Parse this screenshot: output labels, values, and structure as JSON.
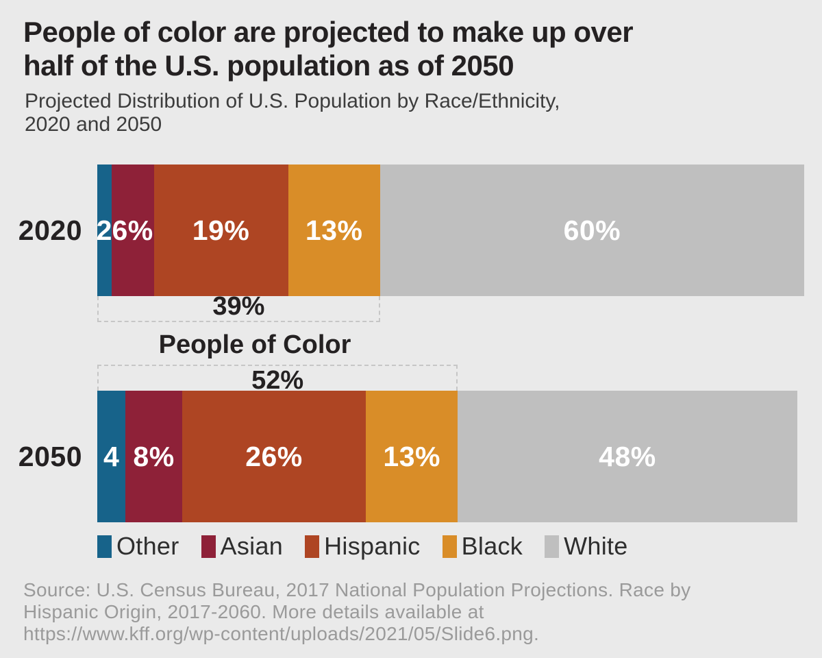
{
  "title": {
    "lines": [
      "People of color are projected to make up over",
      "half of the U.S. population as of 2050"
    ]
  },
  "subtitle": {
    "lines": [
      "Projected Distribution of U.S. Population by Race/Ethnicity,",
      "2020 and 2050"
    ]
  },
  "chart_data": {
    "type": "bar",
    "stacked": true,
    "orientation": "horizontal",
    "title": "People of color are projected to make up over half of the U.S. population as of 2050",
    "subtitle": "Projected Distribution of U.S. Population by Race/Ethnicity, 2020 and 2050",
    "categories": [
      "2020",
      "2050"
    ],
    "series": [
      {
        "name": "Other",
        "color": "#17638a",
        "values": [
          2,
          4
        ]
      },
      {
        "name": "Asian",
        "color": "#8e2138",
        "values": [
          6,
          8
        ]
      },
      {
        "name": "Hispanic",
        "color": "#ae4523",
        "values": [
          19,
          26
        ]
      },
      {
        "name": "Black",
        "color": "#d98d28",
        "values": [
          13,
          13
        ]
      },
      {
        "name": "White",
        "color": "#bfbfbf",
        "values": [
          60,
          48
        ]
      }
    ],
    "rows": [
      {
        "year": "2020",
        "labels": [
          "2",
          "6%",
          "19%",
          "13%",
          "60%"
        ],
        "poc_label": "39%",
        "poc_span_pct": 40
      },
      {
        "year": "2050",
        "labels": [
          "4",
          "8%",
          "26%",
          "13%",
          "48%"
        ],
        "poc_label": "52%",
        "poc_span_pct": 51
      }
    ],
    "annotation": "People of Color",
    "legend_position": "bottom",
    "xlim": [
      0,
      100
    ],
    "grid": false
  },
  "source": {
    "lines": [
      "Source: U.S. Census Bureau, 2017 National Population Projections. Race by",
      "Hispanic Origin, 2017-2060. More details available  at",
      "https://www.kff.org/wp-content/uploads/2021/05/Slide6.png."
    ]
  },
  "colors": {
    "background": "#eaeaea",
    "text_dark": "#242122",
    "subtitle": "#3c3c3c",
    "source": "#9a9a9a",
    "bar_label": "#ffffff",
    "dashed_line": "#c6c6c6",
    "legend_text": "#2e2e2e"
  }
}
